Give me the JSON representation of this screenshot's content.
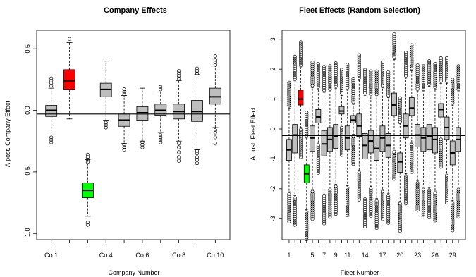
{
  "chart_data": [
    {
      "type": "boxplot",
      "title": "Company Effects",
      "xlabel": "Company Number",
      "ylabel": "A post. Company Effect",
      "ylim": [
        -1.05,
        0.65
      ],
      "yticks": [
        -1.0,
        -0.5,
        0.0,
        0.5
      ],
      "ytick_labels": [
        "-1.0",
        "-0.5",
        "0.0",
        "0.5"
      ],
      "xtick_labels": [
        {
          "pos": 1,
          "label": "Co 1"
        },
        {
          "pos": 4,
          "label": "Co 4"
        },
        {
          "pos": 6,
          "label": "Co 6"
        },
        {
          "pos": 8,
          "label": "Co 8"
        },
        {
          "pos": 10,
          "label": "Co 10"
        }
      ],
      "reference_line": -0.03,
      "xlim": [
        0.2,
        10.8
      ],
      "boxes": [
        {
          "pos": 1,
          "q1": -0.05,
          "median": 0.0,
          "q3": 0.04,
          "lo": -0.2,
          "hi": 0.18,
          "color": "#bebebe",
          "outliers": [
            0.26,
            0.24,
            0.22,
            0.2,
            -0.22,
            -0.24,
            -0.26
          ]
        },
        {
          "pos": 2,
          "q1": 0.17,
          "median": 0.24,
          "q3": 0.33,
          "lo": -0.07,
          "hi": 0.55,
          "color": "#ff0000",
          "outliers": [
            0.58
          ]
        },
        {
          "pos": 3,
          "q1": -0.71,
          "median": -0.65,
          "q3": -0.59,
          "lo": -0.86,
          "hi": -0.4,
          "color": "#00ff00",
          "outliers": [
            -0.36,
            -0.38,
            -0.4,
            -0.42,
            -0.91,
            -0.93
          ]
        },
        {
          "pos": 4,
          "q1": 0.11,
          "median": 0.17,
          "q3": 0.22,
          "lo": -0.08,
          "hi": 0.4,
          "color": "#bebebe",
          "outliers": [
            -0.1,
            -0.12,
            -0.14
          ]
        },
        {
          "pos": 5,
          "q1": -0.13,
          "median": -0.08,
          "q3": -0.03,
          "lo": -0.27,
          "hi": 0.12,
          "color": "#bebebe",
          "outliers": [
            0.13,
            0.15,
            0.17,
            -0.28,
            -0.3,
            -0.32
          ]
        },
        {
          "pos": 6,
          "q1": -0.08,
          "median": -0.02,
          "q3": 0.03,
          "lo": -0.25,
          "hi": 0.18,
          "color": "#bebebe",
          "outliers": [
            -0.26,
            -0.28,
            -0.3
          ]
        },
        {
          "pos": 7,
          "q1": -0.04,
          "median": 0.0,
          "q3": 0.05,
          "lo": -0.18,
          "hi": 0.15,
          "color": "#bebebe",
          "outliers": [
            0.17,
            0.19,
            -0.2,
            -0.22,
            -0.24,
            -0.26
          ]
        },
        {
          "pos": 8,
          "q1": -0.07,
          "median": -0.01,
          "q3": 0.05,
          "lo": -0.25,
          "hi": 0.24,
          "color": "#bebebe",
          "outliers": [
            0.26,
            0.28,
            0.3,
            0.32,
            -0.27,
            -0.3,
            -0.34,
            -0.38,
            -0.41
          ]
        },
        {
          "pos": 9,
          "q1": -0.09,
          "median": -0.01,
          "q3": 0.08,
          "lo": -0.32,
          "hi": 0.29,
          "color": "#bebebe",
          "outliers": [
            0.3,
            0.32,
            0.34,
            -0.33,
            -0.35,
            -0.38,
            -0.4,
            -0.43
          ]
        },
        {
          "pos": 10,
          "q1": 0.05,
          "median": 0.11,
          "q3": 0.18,
          "lo": -0.14,
          "hi": 0.36,
          "color": "#bebebe",
          "outliers": [
            0.37,
            0.39,
            0.41,
            0.44,
            -0.16,
            -0.18,
            -0.22,
            -0.27
          ]
        }
      ]
    },
    {
      "type": "boxplot",
      "title": "Fleet Effects (Random Selection)",
      "xlabel": "Fleet Number",
      "ylabel": "A post. Fleet Effect",
      "ylim": [
        -3.7,
        3.3
      ],
      "yticks": [
        -3,
        -2,
        -1,
        0,
        1,
        2,
        3
      ],
      "ytick_labels": [
        "-3",
        "-2",
        "-1",
        "0",
        "1",
        "2",
        "3"
      ],
      "xtick_labels": [
        {
          "pos": 1,
          "label": "1"
        },
        {
          "pos": 5,
          "label": "5"
        },
        {
          "pos": 7,
          "label": "7"
        },
        {
          "pos": 9,
          "label": "9"
        },
        {
          "pos": 11,
          "label": "11"
        },
        {
          "pos": 14,
          "label": "14"
        },
        {
          "pos": 17,
          "label": "17"
        },
        {
          "pos": 20,
          "label": "20"
        },
        {
          "pos": 23,
          "label": "23"
        },
        {
          "pos": 26,
          "label": "26"
        },
        {
          "pos": 29,
          "label": "29"
        }
      ],
      "reference_line": -0.22,
      "xlim": [
        -0.2,
        31.2
      ],
      "boxes": [
        {
          "pos": 1,
          "median": -0.7,
          "q1": -1.05,
          "q3": -0.35,
          "color": "#bebebe"
        },
        {
          "pos": 2,
          "median": -0.2,
          "q1": -0.8,
          "q3": 0.15,
          "color": "#bebebe"
        },
        {
          "pos": 3,
          "median": 1.0,
          "q1": 0.8,
          "q3": 1.3,
          "color": "#ff0000"
        },
        {
          "pos": 4,
          "median": -1.5,
          "q1": -1.8,
          "q3": -1.2,
          "color": "#00ff00"
        },
        {
          "pos": 5,
          "median": -0.3,
          "q1": -0.75,
          "q3": 0.1,
          "color": "#bebebe"
        },
        {
          "pos": 6,
          "median": 0.4,
          "q1": 0.2,
          "q3": 0.65,
          "color": "#bebebe"
        },
        {
          "pos": 7,
          "median": -0.5,
          "q1": -0.9,
          "q3": -0.05,
          "color": "#bebebe"
        },
        {
          "pos": 8,
          "median": -0.35,
          "q1": -0.75,
          "q3": 0.05,
          "color": "#bebebe"
        },
        {
          "pos": 9,
          "median": -0.25,
          "q1": -0.65,
          "q3": 0.15,
          "color": "#bebebe"
        },
        {
          "pos": 10,
          "median": 0.6,
          "q1": 0.5,
          "q3": 0.75,
          "color": "#bebebe"
        },
        {
          "pos": 11,
          "median": -0.3,
          "q1": -0.7,
          "q3": 0.1,
          "color": "#bebebe"
        },
        {
          "pos": 12,
          "median": 0.3,
          "q1": 0.2,
          "q3": 0.45,
          "color": "#bebebe"
        },
        {
          "pos": 13,
          "median": 0.1,
          "q1": -0.25,
          "q3": 0.5,
          "color": "#bebebe"
        },
        {
          "pos": 14,
          "median": -0.55,
          "q1": -1.0,
          "q3": -0.15,
          "color": "#bebebe"
        },
        {
          "pos": 15,
          "median": -0.4,
          "q1": -0.8,
          "q3": -0.05,
          "color": "#bebebe"
        },
        {
          "pos": 16,
          "median": -0.65,
          "q1": -1.05,
          "q3": -0.2,
          "color": "#bebebe"
        },
        {
          "pos": 17,
          "median": -0.3,
          "q1": -0.75,
          "q3": 0.1,
          "color": "#bebebe"
        },
        {
          "pos": 18,
          "median": -0.55,
          "q1": -0.95,
          "q3": -0.15,
          "color": "#bebebe"
        },
        {
          "pos": 19,
          "median": 0.8,
          "q1": 0.45,
          "q3": 1.2,
          "color": "#bebebe"
        },
        {
          "pos": 20,
          "median": -1.1,
          "q1": -1.45,
          "q3": -0.8,
          "color": "#bebebe"
        },
        {
          "pos": 21,
          "median": 0.1,
          "q1": -0.3,
          "q3": 0.5,
          "color": "#bebebe"
        },
        {
          "pos": 22,
          "median": 0.7,
          "q1": 0.45,
          "q3": 1.05,
          "color": "#bebebe"
        },
        {
          "pos": 23,
          "median": -0.2,
          "q1": -0.6,
          "q3": 0.15,
          "color": "#bebebe"
        },
        {
          "pos": 24,
          "median": -0.3,
          "q1": -0.75,
          "q3": 0.05,
          "color": "#bebebe"
        },
        {
          "pos": 25,
          "median": -0.25,
          "q1": -0.7,
          "q3": 0.15,
          "color": "#bebebe"
        },
        {
          "pos": 26,
          "median": -0.35,
          "q1": -0.8,
          "q3": 0.05,
          "color": "#bebebe"
        },
        {
          "pos": 27,
          "median": 0.65,
          "q1": 0.4,
          "q3": 0.85,
          "color": "#bebebe"
        },
        {
          "pos": 28,
          "median": 0.05,
          "q1": -0.35,
          "q3": 0.4,
          "color": "#bebebe"
        },
        {
          "pos": 29,
          "median": -0.8,
          "q1": -1.2,
          "q3": -0.4,
          "color": "#bebebe"
        },
        {
          "pos": 30,
          "median": -0.35,
          "q1": -0.75,
          "q3": 0.05,
          "color": "#bebebe"
        }
      ]
    }
  ]
}
